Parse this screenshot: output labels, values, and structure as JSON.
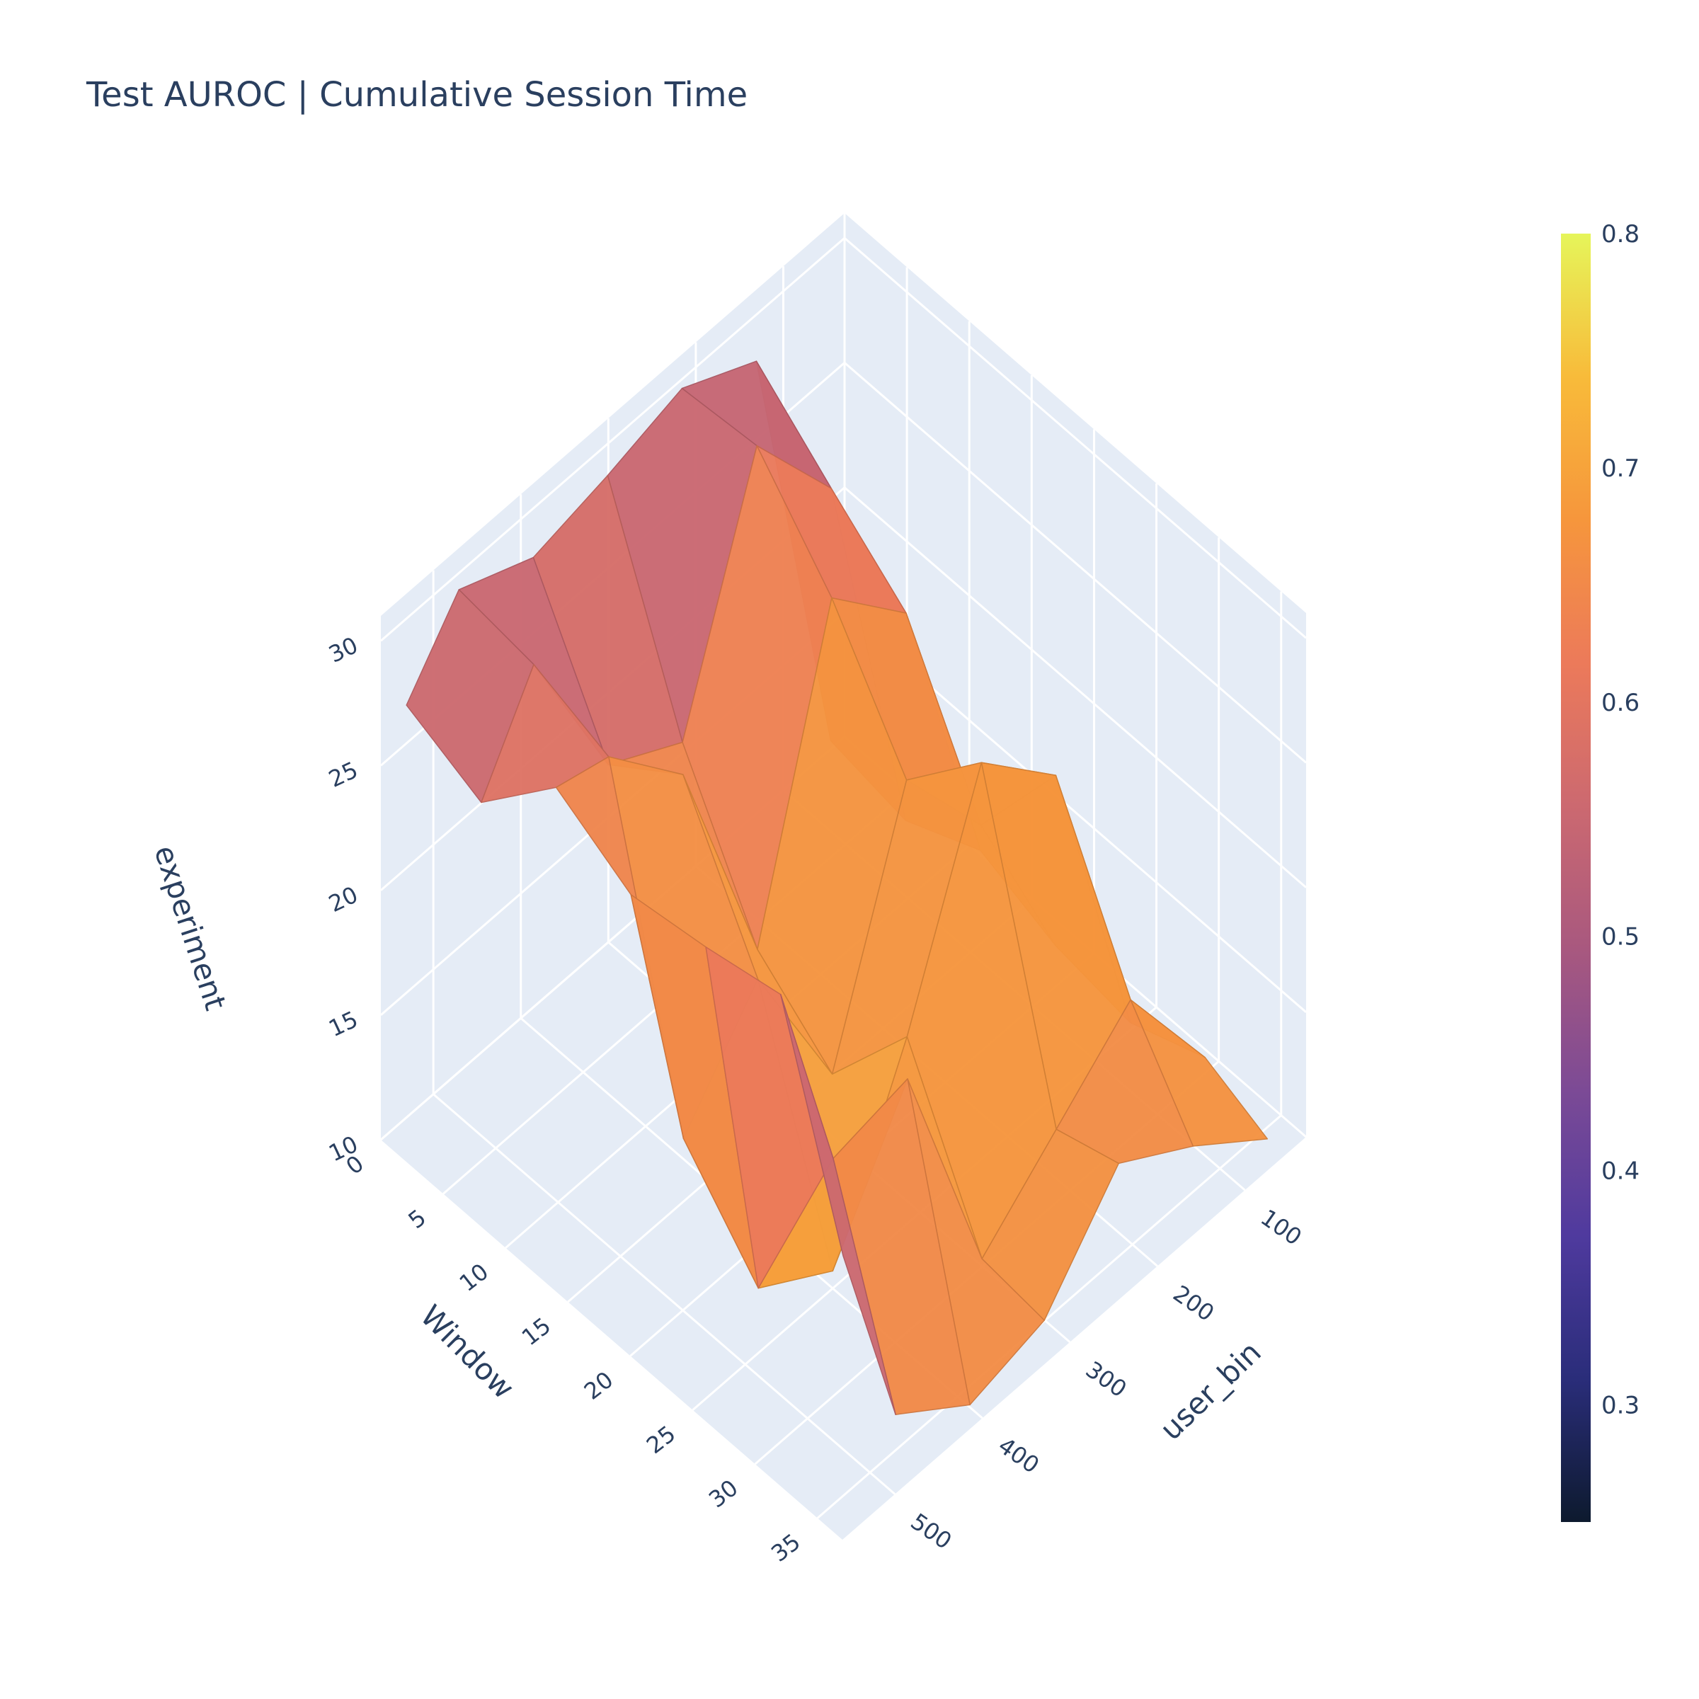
{
  "chart_data": {
    "type": "surface",
    "title": "Test AUROC | Cumulative Session Time",
    "x_axis": {
      "label": "Window",
      "range": [
        0,
        37
      ],
      "ticks": [
        0,
        5,
        10,
        15,
        20,
        25,
        30,
        35
      ]
    },
    "y_axis": {
      "label": "user_bin",
      "range": [
        30,
        560
      ],
      "ticks": [
        100,
        200,
        300,
        400,
        500
      ]
    },
    "z_axis": {
      "label": "experiment",
      "range": [
        10,
        31
      ],
      "ticks": [
        10,
        15,
        20,
        25,
        30
      ]
    },
    "colorbar": {
      "min": 0.25,
      "max": 0.8,
      "ticks": [
        0.3,
        0.4,
        0.5,
        0.6,
        0.7,
        0.8
      ],
      "colorscale": "plasma"
    },
    "colorscale_stops": [
      "#0d1a2e",
      "#2a2d7a",
      "#4f3a9e",
      "#7b4a96",
      "#a8587f",
      "#cc6970",
      "#ec7a5a",
      "#f6963c",
      "#f8bb3a",
      "#e6f55a"
    ],
    "grid": true,
    "legend": "none",
    "surface": {
      "x": [
        1,
        7,
        13,
        19,
        25,
        31,
        36
      ],
      "y": [
        60,
        145,
        230,
        315,
        400,
        485,
        545
      ],
      "z": [
        [
          11.2,
          29.0,
          30.5,
          29.6,
          28.9,
          30.2,
          27.4
        ],
        [
          10.6,
          26.5,
          30.8,
          21.5,
          23.2,
          29.8,
          26.1
        ],
        [
          12.0,
          24.1,
          27.3,
          15.8,
          25.4,
          28.7,
          29.3
        ],
        [
          10.8,
          18.2,
          22.6,
          13.4,
          19.8,
          16.0,
          27.6
        ],
        [
          10.3,
          22.8,
          25.9,
          17.5,
          10.7,
          12.6,
          28.1
        ],
        [
          11.5,
          16.4,
          13.8,
          11.2,
          21.0,
          20.4,
          28.8
        ],
        [
          10.4,
          12.7,
          14.6,
          10.9,
          10.1,
          12.3,
          20.5
        ]
      ],
      "c": [
        [
          0.72,
          0.52,
          0.48,
          0.53,
          0.5,
          0.56,
          0.55
        ],
        [
          0.55,
          0.62,
          0.56,
          0.64,
          0.63,
          0.52,
          0.6
        ],
        [
          0.7,
          0.67,
          0.61,
          0.72,
          0.58,
          0.66,
          0.58
        ],
        [
          0.68,
          0.7,
          0.65,
          0.71,
          0.69,
          0.72,
          0.61
        ],
        [
          0.66,
          0.69,
          0.66,
          0.67,
          0.7,
          0.71,
          0.57
        ],
        [
          0.71,
          0.67,
          0.68,
          0.69,
          0.66,
          0.7,
          0.49
        ],
        [
          0.64,
          0.66,
          0.62,
          0.68,
          0.6,
          0.65,
          0.38
        ]
      ]
    }
  }
}
